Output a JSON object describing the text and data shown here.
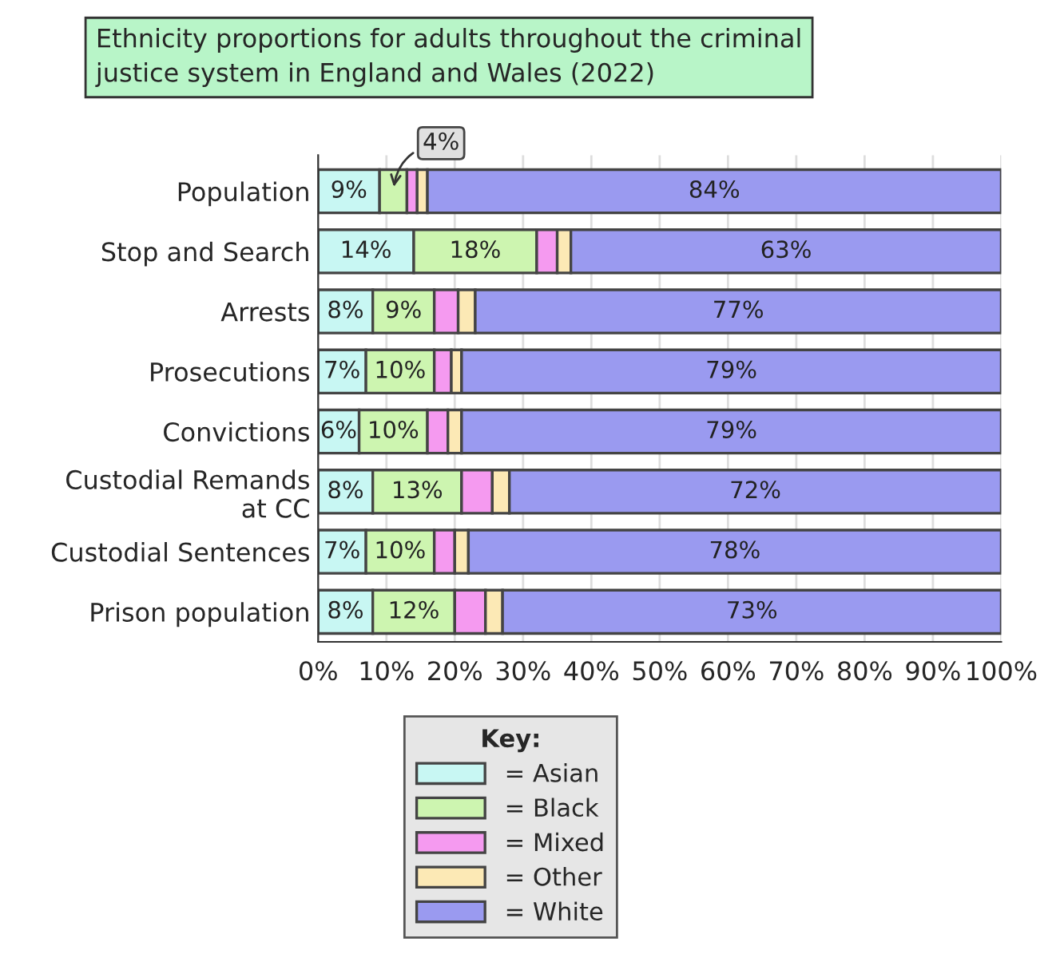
{
  "chart_data": {
    "type": "bar",
    "orientation": "horizontal",
    "stacked": true,
    "title": "Ethnicity proportions for adults throughout the criminal\njustice system in England and Wales (2022)",
    "categories": [
      "Population",
      "Stop and Search",
      "Arrests",
      "Prosecutions",
      "Convictions",
      "Custodial Remands\nat CC",
      "Custodial Sentences",
      "Prison population"
    ],
    "series": [
      {
        "name": "= Asian",
        "color": "#c8f7f3",
        "values": [
          9,
          14,
          8,
          7,
          6,
          8,
          7,
          8
        ],
        "value_labels": [
          "9%",
          "14%",
          "8%",
          "7%",
          "6%",
          "8%",
          "7%",
          "8%"
        ]
      },
      {
        "name": "= Black",
        "color": "#cdf5b0",
        "values": [
          4,
          18,
          9,
          10,
          10,
          13,
          10,
          12
        ],
        "value_labels": [
          null,
          "18%",
          "9%",
          "10%",
          "10%",
          "13%",
          "10%",
          "12%"
        ]
      },
      {
        "name": "= Mixed",
        "color": "#f59af0",
        "values": [
          1.5,
          3,
          3.5,
          2.5,
          3,
          4.5,
          3,
          4.5
        ]
      },
      {
        "name": "= Other",
        "color": "#fce9b5",
        "values": [
          1.5,
          2,
          2.5,
          1.5,
          2,
          2.5,
          2,
          2.5
        ]
      },
      {
        "name": "= White",
        "color": "#9a9af0",
        "values": [
          84,
          63,
          77,
          79,
          79,
          72,
          78,
          73
        ],
        "value_labels": [
          "84%",
          "63%",
          "77%",
          "79%",
          "79%",
          "72%",
          "78%",
          "73%"
        ]
      }
    ],
    "annotations": [
      "4%"
    ],
    "xlim": [
      0,
      100
    ],
    "xticks": [
      {
        "value": 0,
        "label": "0%"
      },
      {
        "value": 10,
        "label": "10%"
      },
      {
        "value": 20,
        "label": "20%"
      },
      {
        "value": 30,
        "label": "30%"
      },
      {
        "value": 40,
        "label": "40%"
      },
      {
        "value": 50,
        "label": "50%"
      },
      {
        "value": 60,
        "label": "60%"
      },
      {
        "value": 70,
        "label": "70%"
      },
      {
        "value": 80,
        "label": "80%"
      },
      {
        "value": 90,
        "label": "90%"
      },
      {
        "value": 100,
        "label": "100%"
      }
    ],
    "grid": "x",
    "legend": "bottom",
    "legend_title": "Key:"
  }
}
